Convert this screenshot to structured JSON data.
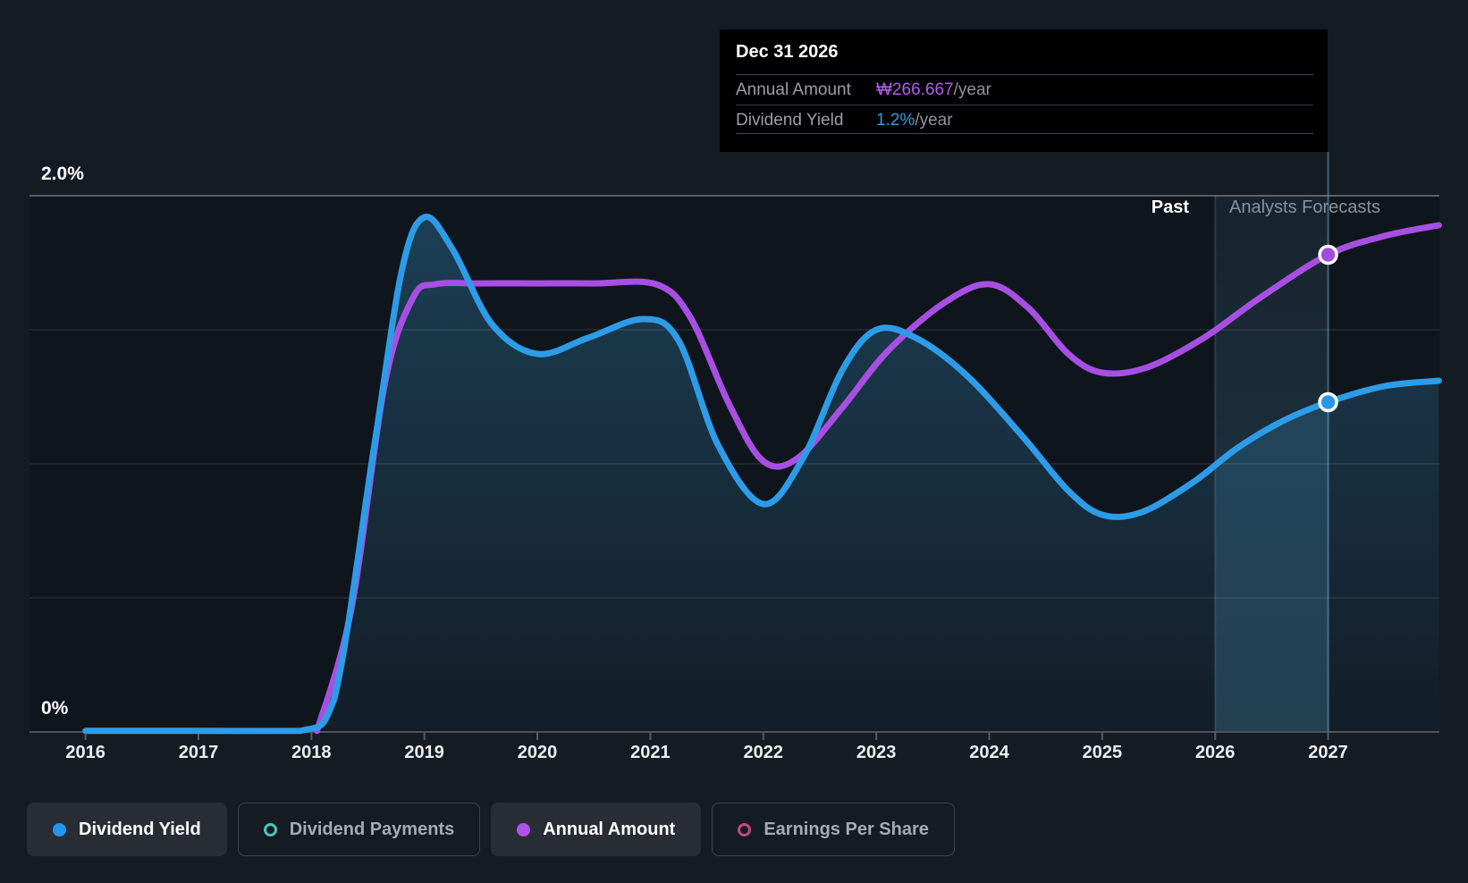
{
  "tooltip": {
    "title": "Dec 31 2026",
    "rows": [
      {
        "label": "Annual Amount",
        "value": "₩266.667",
        "suffix": "/year",
        "value_color": "#b45ced"
      },
      {
        "label": "Dividend Yield",
        "value": "1.2%",
        "suffix": "/year",
        "value_color": "#2f9fe9"
      }
    ]
  },
  "zones": {
    "past_label": "Past",
    "forecast_label": "Analysts Forecasts"
  },
  "y_axis": {
    "top_label": "2.0%",
    "bottom_label": "0%"
  },
  "x_axis": {
    "years": [
      "2016",
      "2017",
      "2018",
      "2019",
      "2020",
      "2021",
      "2022",
      "2023",
      "2024",
      "2025",
      "2026",
      "2027"
    ]
  },
  "legend": [
    {
      "label": "Dividend Yield",
      "marker": "filled-dot",
      "color": "#2196f3",
      "active": true
    },
    {
      "label": "Dividend Payments",
      "marker": "ring",
      "color": "#47c7bc",
      "active": false
    },
    {
      "label": "Annual Amount",
      "marker": "filled-dot",
      "color": "#ae54ea",
      "active": true
    },
    {
      "label": "Earnings Per Share",
      "marker": "ring",
      "color": "#c2497f",
      "active": false
    }
  ],
  "chart_data": {
    "type": "line",
    "title": "Dividend Yield vs Annual Amount, past and analyst forecasts",
    "x_range": [
      2016,
      2027.98
    ],
    "y_axis": {
      "min": 0,
      "max": 2.0,
      "unit": "%",
      "gridlines": [
        0,
        0.5,
        1.0,
        1.5,
        2.0
      ],
      "top_tick_label": "2.0%",
      "bottom_tick_label": "0%"
    },
    "grid": true,
    "legend_position": "bottom",
    "forecast_divider_x": 2026,
    "hover_point_label": "Dec 31 2026",
    "hover_x": 2027.0,
    "hover_markers": [
      {
        "series": "Annual Amount",
        "x": 2027.0,
        "y_axis_pct": 1.78,
        "display_value": "₩266.667/year"
      },
      {
        "series": "Dividend Yield",
        "x": 2027.0,
        "y_axis_pct": 1.23,
        "display_value": "1.2%/year"
      }
    ],
    "series": [
      {
        "name": "Dividend Yield",
        "color": "#2d9ce8",
        "area_fill": true,
        "unit": "%",
        "points": [
          [
            2016,
            0.004
          ],
          [
            2017,
            0.004
          ],
          [
            2017.9,
            0.004
          ],
          [
            2018.2,
            0.12
          ],
          [
            2018.55,
            1.05
          ],
          [
            2018.8,
            1.72
          ],
          [
            2019.0,
            1.92
          ],
          [
            2019.25,
            1.8
          ],
          [
            2019.6,
            1.52
          ],
          [
            2020.0,
            1.41
          ],
          [
            2020.45,
            1.47
          ],
          [
            2020.94,
            1.54
          ],
          [
            2021.25,
            1.46
          ],
          [
            2021.6,
            1.07
          ],
          [
            2022.0,
            0.85
          ],
          [
            2022.35,
            1.02
          ],
          [
            2022.7,
            1.35
          ],
          [
            2023.0,
            1.5
          ],
          [
            2023.35,
            1.47
          ],
          [
            2023.8,
            1.33
          ],
          [
            2024.3,
            1.1
          ],
          [
            2024.7,
            0.9
          ],
          [
            2025.0,
            0.81
          ],
          [
            2025.35,
            0.82
          ],
          [
            2025.8,
            0.93
          ],
          [
            2026.2,
            1.06
          ],
          [
            2026.6,
            1.16
          ],
          [
            2027.0,
            1.23
          ],
          [
            2027.5,
            1.29
          ],
          [
            2027.98,
            1.31
          ]
        ]
      },
      {
        "name": "Annual Amount",
        "color": "#a84fe3",
        "area_fill": false,
        "unit": "KRW (visual overlay on % axis)",
        "points": [
          [
            2018.05,
            0.004
          ],
          [
            2018.35,
            0.45
          ],
          [
            2018.65,
            1.3
          ],
          [
            2018.9,
            1.62
          ],
          [
            2019.1,
            1.67
          ],
          [
            2019.5,
            1.673
          ],
          [
            2020,
            1.673
          ],
          [
            2020.5,
            1.673
          ],
          [
            2021.05,
            1.67
          ],
          [
            2021.35,
            1.55
          ],
          [
            2021.7,
            1.22
          ],
          [
            2022.0,
            1.01
          ],
          [
            2022.3,
            1.02
          ],
          [
            2022.7,
            1.21
          ],
          [
            2023.1,
            1.42
          ],
          [
            2023.6,
            1.6
          ],
          [
            2024.0,
            1.67
          ],
          [
            2024.35,
            1.58
          ],
          [
            2024.7,
            1.41
          ],
          [
            2025.0,
            1.34
          ],
          [
            2025.4,
            1.36
          ],
          [
            2025.9,
            1.47
          ],
          [
            2026.4,
            1.62
          ],
          [
            2027.0,
            1.78
          ],
          [
            2027.5,
            1.85
          ],
          [
            2027.98,
            1.89
          ]
        ]
      }
    ]
  }
}
